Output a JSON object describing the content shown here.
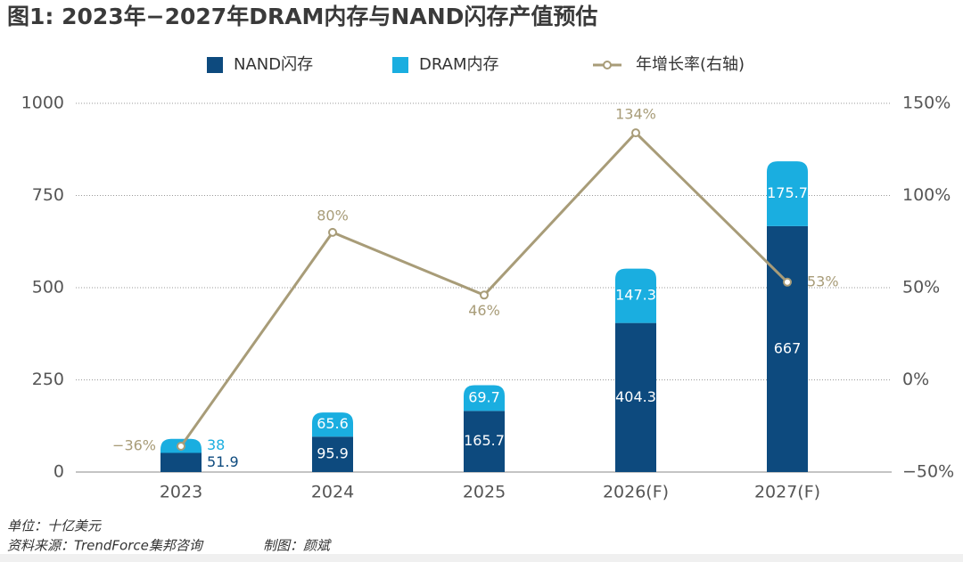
{
  "chart_data": {
    "type": "bar",
    "title": "图1: 2023年−2027年DRAM内存与NAND闪存产值预估",
    "categories": [
      "2023",
      "2024",
      "2025",
      "2026(F)",
      "2027(F)"
    ],
    "stacked": true,
    "series": [
      {
        "name": "NAND闪存",
        "color": "#0d4a7e",
        "values": [
          51.9,
          95.9,
          165.7,
          404.3,
          667
        ]
      },
      {
        "name": "DRAM内存",
        "color": "#1aaee0",
        "values": [
          38,
          65.6,
          69.7,
          147.3,
          175.7
        ]
      },
      {
        "name": "年增长率(右轴)",
        "color": "#a89c78",
        "type": "line",
        "axis": "y2",
        "values": [
          -36,
          80,
          46,
          134,
          53
        ],
        "value_labels": [
          "−36%",
          "80%",
          "46%",
          "134%",
          "53%"
        ]
      }
    ],
    "ylim": [
      0,
      1000
    ],
    "yticks": [
      0,
      250,
      500,
      750,
      1000
    ],
    "y2lim": [
      -50,
      150
    ],
    "y2ticks": [
      {
        "value": -50,
        "label": "−50%"
      },
      {
        "value": 0,
        "label": "0%"
      },
      {
        "value": 50,
        "label": "50%"
      },
      {
        "value": 100,
        "label": "100%"
      },
      {
        "value": 150,
        "label": "150%"
      }
    ],
    "grid": true,
    "unit_note": "单位：十亿美元",
    "source": "资料来源：TrendForce集邦咨询",
    "credit": "制图：颜斌"
  }
}
